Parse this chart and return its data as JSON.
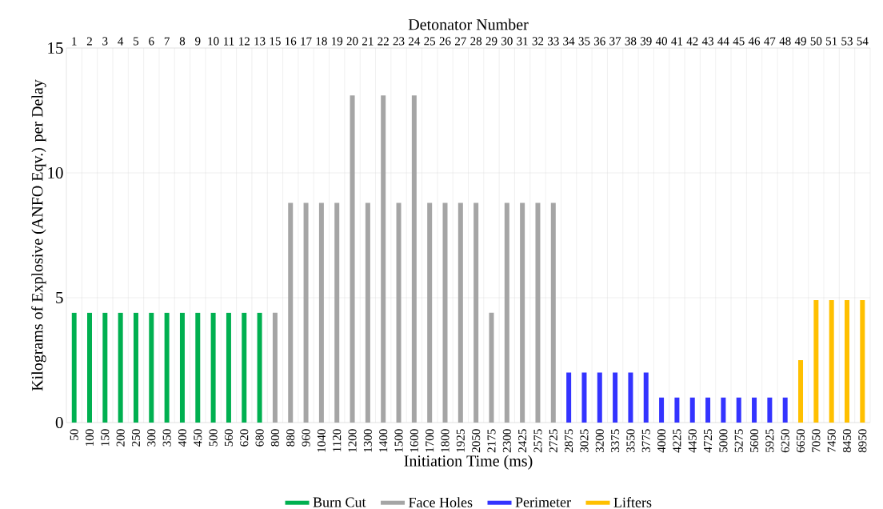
{
  "chart_data": {
    "type": "bar",
    "xlabel": "Initiation Time (ms)",
    "ylabel": "Kilograms of Explosive (ANFO Eqv.) per Delay",
    "x2label": "Detonator Number",
    "categories": [
      "50",
      "100",
      "150",
      "200",
      "250",
      "300",
      "350",
      "400",
      "450",
      "500",
      "560",
      "620",
      "680",
      "800",
      "880",
      "960",
      "1040",
      "1120",
      "1200",
      "1300",
      "1400",
      "1500",
      "1600",
      "1700",
      "1800",
      "1925",
      "2050",
      "2175",
      "2300",
      "2425",
      "2575",
      "2725",
      "2875",
      "3025",
      "3200",
      "3375",
      "3550",
      "3775",
      "4000",
      "4225",
      "4450",
      "4725",
      "5000",
      "5275",
      "5600",
      "5925",
      "6250",
      "6650",
      "7050",
      "7450",
      "8450",
      "8950"
    ],
    "annotations": [
      "1",
      "2",
      "3",
      "4",
      "5",
      "6",
      "7",
      "8",
      "9",
      "10",
      "11",
      "12",
      "13",
      "15",
      "16",
      "17",
      "18",
      "19",
      "20",
      "21",
      "22",
      "23",
      "24",
      "25",
      "26",
      "27",
      "28",
      "29",
      "30",
      "31",
      "32",
      "33",
      "34",
      "35",
      "36",
      "37",
      "38",
      "39",
      "40",
      "41",
      "42",
      "43",
      "44",
      "45",
      "46",
      "47",
      "48",
      "49",
      "50",
      "51",
      "53",
      "54"
    ],
    "series": [
      {
        "name": "Burn Cut",
        "color": "#00b050",
        "values": [
          4.4,
          4.4,
          4.4,
          4.4,
          4.4,
          4.4,
          4.4,
          4.4,
          4.4,
          4.4,
          4.4,
          4.4,
          4.4,
          null,
          null,
          null,
          null,
          null,
          null,
          null,
          null,
          null,
          null,
          null,
          null,
          null,
          null,
          null,
          null,
          null,
          null,
          null,
          null,
          null,
          null,
          null,
          null,
          null,
          null,
          null,
          null,
          null,
          null,
          null,
          null,
          null,
          null,
          null,
          null,
          null,
          null,
          null
        ]
      },
      {
        "name": "Face Holes",
        "color": "#a5a5a5",
        "values": [
          null,
          null,
          null,
          null,
          null,
          null,
          null,
          null,
          null,
          null,
          null,
          null,
          null,
          4.4,
          8.8,
          8.8,
          8.8,
          8.8,
          13.1,
          8.8,
          13.1,
          8.8,
          13.1,
          8.8,
          8.8,
          8.8,
          8.8,
          4.4,
          8.8,
          8.8,
          8.8,
          8.8,
          null,
          null,
          null,
          null,
          null,
          null,
          null,
          null,
          null,
          null,
          null,
          null,
          null,
          null,
          null,
          null,
          null,
          null,
          null,
          null
        ]
      },
      {
        "name": "Perimeter",
        "color": "#3333ff",
        "values": [
          null,
          null,
          null,
          null,
          null,
          null,
          null,
          null,
          null,
          null,
          null,
          null,
          null,
          null,
          null,
          null,
          null,
          null,
          null,
          null,
          null,
          null,
          null,
          null,
          null,
          null,
          null,
          null,
          null,
          null,
          null,
          null,
          2,
          2,
          2,
          2,
          2,
          2,
          1,
          1,
          1,
          1,
          1,
          1,
          1,
          1,
          1,
          null,
          null,
          null,
          null,
          null
        ]
      },
      {
        "name": "Lifters",
        "color": "#ffc000",
        "values": [
          null,
          null,
          null,
          null,
          null,
          null,
          null,
          null,
          null,
          null,
          null,
          null,
          null,
          null,
          null,
          null,
          null,
          null,
          null,
          null,
          null,
          null,
          null,
          null,
          null,
          null,
          null,
          null,
          null,
          null,
          null,
          null,
          null,
          null,
          null,
          null,
          null,
          null,
          null,
          null,
          null,
          null,
          null,
          null,
          null,
          null,
          null,
          2.5,
          4.9,
          4.9,
          4.9,
          4.9
        ]
      }
    ],
    "ylim": [
      0,
      15
    ],
    "yticks": [
      0,
      5,
      10,
      15
    ],
    "grid": true,
    "legend": "bottom"
  }
}
